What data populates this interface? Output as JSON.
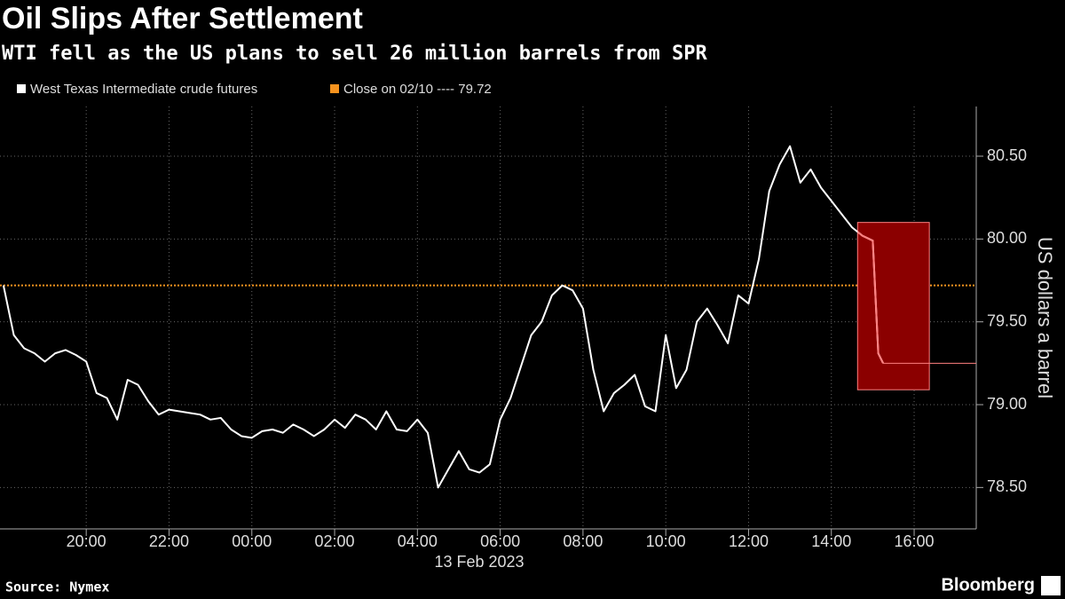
{
  "chart_data": {
    "type": "line",
    "title": "Oil Slips After Settlement",
    "subtitle": "WTI fell as the US plans to sell 26 million barrels from SPR",
    "source": "Source: Nymex",
    "brand": "Bloomberg",
    "y_label": "US dollars a barrel",
    "date_label": "13 Feb 2023",
    "xlim": [
      "2023-02-12T17:55",
      "2023-02-13T17:30"
    ],
    "xticks": [
      {
        "value": "2023-02-12T20:00",
        "label": "20:00"
      },
      {
        "value": "2023-02-12T22:00",
        "label": "22:00"
      },
      {
        "value": "2023-02-13T00:00",
        "label": "00:00"
      },
      {
        "value": "2023-02-13T02:00",
        "label": "02:00"
      },
      {
        "value": "2023-02-13T04:00",
        "label": "04:00"
      },
      {
        "value": "2023-02-13T06:00",
        "label": "06:00"
      },
      {
        "value": "2023-02-13T08:00",
        "label": "08:00"
      },
      {
        "value": "2023-02-13T10:00",
        "label": "10:00"
      },
      {
        "value": "2023-02-13T12:00",
        "label": "12:00"
      },
      {
        "value": "2023-02-13T14:00",
        "label": "14:00"
      },
      {
        "value": "2023-02-13T16:00",
        "label": "16:00"
      }
    ],
    "ylim": [
      78.25,
      80.8
    ],
    "yticks": [
      {
        "value": 78.5,
        "label": "78.50"
      },
      {
        "value": 79,
        "label": "79.00"
      },
      {
        "value": 79.5,
        "label": "79.50"
      },
      {
        "value": 80,
        "label": "80.00"
      },
      {
        "value": 80.5,
        "label": "80.50"
      }
    ],
    "grid": true,
    "x": [
      "2023-02-12T18:00",
      "2023-02-12T18:15",
      "2023-02-12T18:30",
      "2023-02-12T18:45",
      "2023-02-12T19:00",
      "2023-02-12T19:15",
      "2023-02-12T19:30",
      "2023-02-12T19:45",
      "2023-02-12T20:00",
      "2023-02-12T20:15",
      "2023-02-12T20:30",
      "2023-02-12T20:45",
      "2023-02-12T21:00",
      "2023-02-12T21:15",
      "2023-02-12T21:30",
      "2023-02-12T21:45",
      "2023-02-12T22:00",
      "2023-02-12T22:15",
      "2023-02-12T22:30",
      "2023-02-12T22:45",
      "2023-02-12T23:00",
      "2023-02-12T23:15",
      "2023-02-12T23:30",
      "2023-02-12T23:45",
      "2023-02-13T00:00",
      "2023-02-13T00:15",
      "2023-02-13T00:30",
      "2023-02-13T00:45",
      "2023-02-13T01:00",
      "2023-02-13T01:15",
      "2023-02-13T01:30",
      "2023-02-13T01:45",
      "2023-02-13T02:00",
      "2023-02-13T02:15",
      "2023-02-13T02:30",
      "2023-02-13T02:45",
      "2023-02-13T03:00",
      "2023-02-13T03:15",
      "2023-02-13T03:30",
      "2023-02-13T03:45",
      "2023-02-13T04:00",
      "2023-02-13T04:15",
      "2023-02-13T04:30",
      "2023-02-13T04:45",
      "2023-02-13T05:00",
      "2023-02-13T05:15",
      "2023-02-13T05:30",
      "2023-02-13T05:45",
      "2023-02-13T06:00",
      "2023-02-13T06:15",
      "2023-02-13T06:30",
      "2023-02-13T06:45",
      "2023-02-13T07:00",
      "2023-02-13T07:15",
      "2023-02-13T07:30",
      "2023-02-13T07:45",
      "2023-02-13T08:00",
      "2023-02-13T08:15",
      "2023-02-13T08:30",
      "2023-02-13T08:45",
      "2023-02-13T09:00",
      "2023-02-13T09:15",
      "2023-02-13T09:30",
      "2023-02-13T09:45",
      "2023-02-13T10:00",
      "2023-02-13T10:15",
      "2023-02-13T10:30",
      "2023-02-13T10:45",
      "2023-02-13T11:00",
      "2023-02-13T11:15",
      "2023-02-13T11:30",
      "2023-02-13T11:45",
      "2023-02-13T12:00",
      "2023-02-13T12:15",
      "2023-02-13T12:30",
      "2023-02-13T12:45",
      "2023-02-13T13:00",
      "2023-02-13T13:15",
      "2023-02-13T13:30",
      "2023-02-13T13:45",
      "2023-02-13T14:00",
      "2023-02-13T14:15",
      "2023-02-13T14:30",
      "2023-02-13T14:45",
      "2023-02-13T15:00",
      "2023-02-13T15:08",
      "2023-02-13T15:15"
    ],
    "series": [
      {
        "name": "West Texas Intermediate crude futures",
        "color": "#ffffff",
        "values": [
          79.72,
          79.42,
          79.34,
          79.31,
          79.26,
          79.31,
          79.33,
          79.3,
          79.26,
          79.07,
          79.04,
          78.91,
          79.15,
          79.12,
          79.02,
          78.94,
          78.97,
          78.96,
          78.95,
          78.94,
          78.91,
          78.92,
          78.85,
          78.81,
          78.8,
          78.84,
          78.85,
          78.83,
          78.88,
          78.85,
          78.81,
          78.85,
          78.91,
          78.86,
          78.94,
          78.91,
          78.85,
          78.96,
          78.85,
          78.84,
          78.91,
          78.83,
          78.5,
          78.61,
          78.72,
          78.61,
          78.59,
          78.64,
          78.91,
          79.04,
          79.23,
          79.42,
          79.5,
          79.66,
          79.72,
          79.69,
          79.58,
          79.21,
          78.96,
          79.07,
          79.12,
          79.18,
          78.99,
          78.96,
          79.42,
          79.1,
          79.21,
          79.5,
          79.58,
          79.48,
          79.37,
          79.66,
          79.61,
          79.88,
          80.29,
          80.45,
          80.56,
          80.34,
          80.42,
          80.31,
          80.23,
          80.15,
          80.07,
          80.02,
          79.99,
          79.31,
          79.25
        ]
      }
    ],
    "reference_line": {
      "label": "Close on 02/10 ---- 79.72",
      "value": 79.72,
      "color": "#f7931e"
    },
    "highlight": {
      "x": [
        "2023-02-13T14:38",
        "2023-02-13T16:22"
      ],
      "y": [
        79.09,
        80.1
      ],
      "color": "#8b0000",
      "line_color": "#ff8080"
    }
  }
}
